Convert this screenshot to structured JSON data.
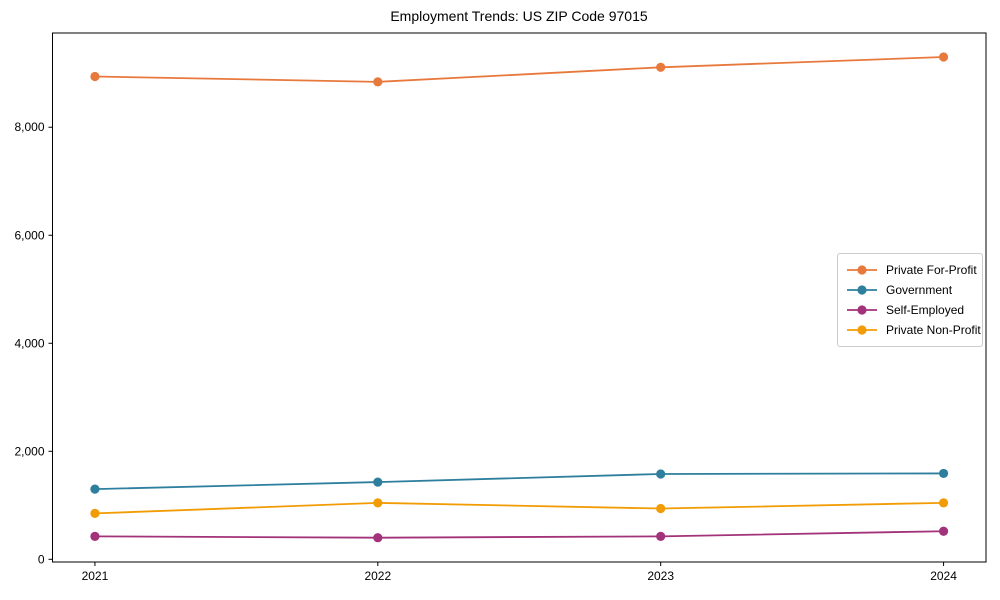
{
  "chart_data": {
    "type": "line",
    "title": "Employment Trends: US ZIP Code 97015",
    "xlabel": "",
    "ylabel": "",
    "x": [
      2021,
      2022,
      2023,
      2024
    ],
    "x_tick_labels": [
      "2021",
      "2022",
      "2023",
      "2024"
    ],
    "y_ticks": [
      0,
      2000,
      4000,
      6000,
      8000
    ],
    "y_tick_labels": [
      "0",
      "2,000",
      "4,000",
      "6,000",
      "8,000"
    ],
    "ylim": [
      -50,
      9745
    ],
    "xlim_pad_years": 0.15,
    "grid": false,
    "legend_position": "center-right",
    "marker": "circle",
    "series": [
      {
        "name": "Private For-Profit",
        "color": "#e8793d",
        "values": [
          8940,
          8840,
          9110,
          9300
        ]
      },
      {
        "name": "Government",
        "color": "#2e7f9e",
        "values": [
          1300,
          1430,
          1580,
          1590
        ]
      },
      {
        "name": "Self-Employed",
        "color": "#a23279",
        "values": [
          425,
          400,
          425,
          520
        ]
      },
      {
        "name": "Private Non-Profit",
        "color": "#f29c05",
        "values": [
          850,
          1045,
          940,
          1045
        ]
      }
    ]
  }
}
